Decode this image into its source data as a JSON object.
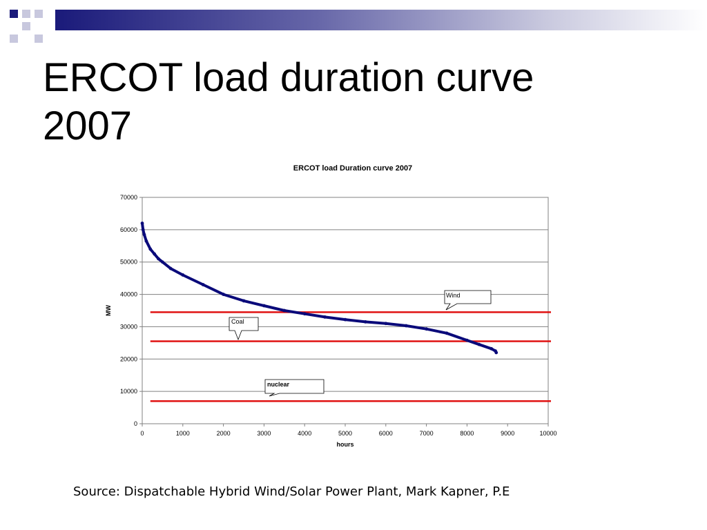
{
  "slide": {
    "title_line1": "ERCOT load duration curve",
    "title_line2": "2007",
    "source": "Source: Dispatchable Hybrid Wind/Solar Power Plant, Mark Kapner, P.E"
  },
  "colors": {
    "header_dark": "#1a1a7a",
    "series": "#0a0a7a",
    "reference_lines": "#e01010"
  },
  "chart_data": {
    "type": "line",
    "title": "ERCOT load Duration curve 2007",
    "xlabel": "hours",
    "ylabel": "MW",
    "xlim": [
      0,
      10000
    ],
    "ylim": [
      0,
      70000
    ],
    "x_ticks": [
      "0",
      "1000",
      "2000",
      "3000",
      "4000",
      "5000",
      "6000",
      "7000",
      "8000",
      "9000",
      "10000"
    ],
    "y_ticks": [
      "0",
      "10000",
      "20000",
      "30000",
      "40000",
      "50000",
      "60000",
      "70000"
    ],
    "grid": "horizontal",
    "series": [
      {
        "points": [
          [
            0,
            62000
          ],
          [
            20,
            60000
          ],
          [
            50,
            58500
          ],
          [
            100,
            56500
          ],
          [
            200,
            54000
          ],
          [
            300,
            52500
          ],
          [
            400,
            51000
          ],
          [
            500,
            50000
          ],
          [
            700,
            48000
          ],
          [
            1000,
            46000
          ],
          [
            1500,
            43000
          ],
          [
            2000,
            40000
          ],
          [
            2500,
            38000
          ],
          [
            3000,
            36500
          ],
          [
            3500,
            35000
          ],
          [
            4000,
            34000
          ],
          [
            4500,
            33000
          ],
          [
            5000,
            32200
          ],
          [
            5500,
            31500
          ],
          [
            6000,
            31000
          ],
          [
            6500,
            30300
          ],
          [
            7000,
            29300
          ],
          [
            7500,
            28000
          ],
          [
            8000,
            25800
          ],
          [
            8300,
            24500
          ],
          [
            8600,
            23200
          ],
          [
            8700,
            22500
          ],
          [
            8720,
            22000
          ]
        ]
      }
    ],
    "reference_lines": [
      {
        "value": 34500,
        "x_start": 200,
        "x_end": 10000
      },
      {
        "value": 25500,
        "x_start": 200,
        "x_end": 10000
      },
      {
        "value": 7000,
        "x_start": 200,
        "x_end": 10000
      }
    ],
    "callouts": [
      {
        "label": "Wind",
        "bold": false
      },
      {
        "label": "Coal",
        "bold": false
      },
      {
        "label": "nuclear",
        "bold": true
      }
    ]
  }
}
